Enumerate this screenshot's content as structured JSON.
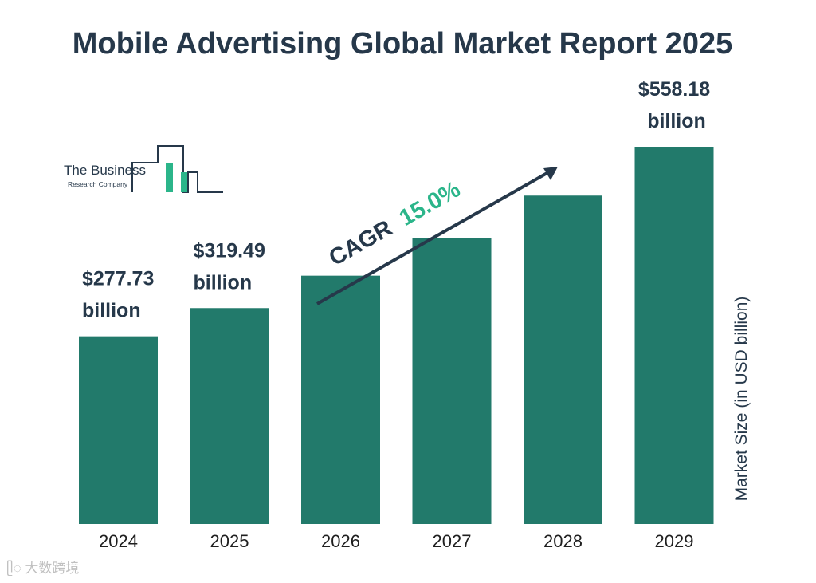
{
  "title": "Mobile Advertising Global Market Report 2025",
  "logo": {
    "line1": "The Business",
    "line2": "Research Company"
  },
  "cagr": {
    "label": "CAGR",
    "value": "15.0%"
  },
  "watermark": "大数跨境",
  "colors": {
    "bar": "#227a6b",
    "text": "#26384a",
    "cagr_value": "#2bb58a",
    "arrow": "#26384a"
  },
  "chart_data": {
    "type": "bar",
    "title": "Mobile Advertising Global Market Report 2025",
    "categories": [
      "2024",
      "2025",
      "2026",
      "2027",
      "2028",
      "2029"
    ],
    "values": [
      277.73,
      319.49,
      367.4,
      422.5,
      485.9,
      558.18
    ],
    "value_labels": [
      "$277.73 billion",
      "$319.49 billion",
      "",
      "",
      "",
      "$558.18 billion"
    ],
    "xlabel": "",
    "ylabel": "Market Size (in USD billion)",
    "grid": false,
    "legend": "none"
  }
}
